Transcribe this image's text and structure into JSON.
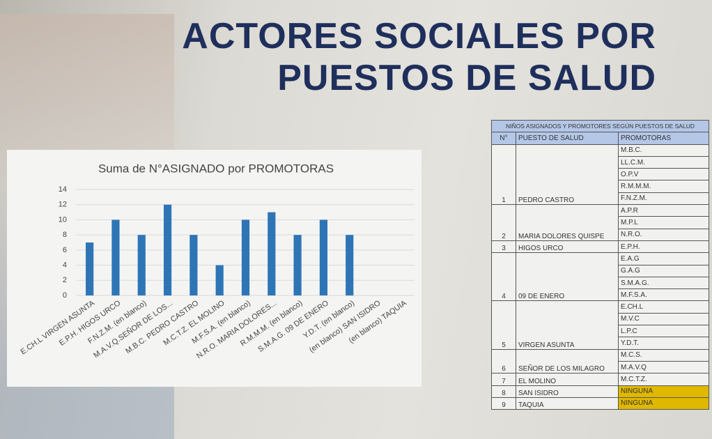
{
  "page_title": {
    "lines": [
      "ACTORES SOCIALES POR",
      "PUESTOS DE SALUD"
    ]
  },
  "chart_data": {
    "type": "bar",
    "title": "Suma de N°ASIGNADO por PROMOTORAS",
    "categories": [
      "E.CH.L VIRGEN ASUNTA",
      "E.P.H. HIGOS URCO",
      "F.N.Z.M. (en blanco)",
      "M.A.V.Q.SEÑOR DE LOS...",
      "M.B.C. PEDRO CASTRO",
      "M.C.T.Z. EL MOLINO",
      "M.F.S.A. (en blanco)",
      "N.R.O. MARIA DOLORES...",
      "R.M.M.M. (en blanco)",
      "S.M.A.G. 09 DE ENERO",
      "Y.D.T. (en blanco)",
      "(en blanco) SAN ISIDRO",
      "(en blanco) TAQUIA"
    ],
    "values": [
      7,
      10,
      8,
      12,
      8,
      4,
      10,
      11,
      8,
      10,
      8,
      null,
      null
    ],
    "color": "#2e75b6",
    "ylim": [
      0,
      14
    ],
    "yticks": [
      0,
      2,
      4,
      6,
      8,
      10,
      12,
      14
    ],
    "grid": true
  },
  "table": {
    "title": "NIÑOS ASIGNADOS Y PROMOTORES SEGÚN PUESTOS DE SALUD",
    "header": [
      "N°",
      "PUESTO DE SALUD",
      "PROMOTORAS"
    ],
    "groups": [
      {
        "n": 1,
        "puesto": "PEDRO CASTRO",
        "promotoras": [
          "M.B.C.",
          "LL.C.M.",
          "O.P.V",
          "R.M.M.M.",
          "F.N.Z.M."
        ]
      },
      {
        "n": 2,
        "puesto": "MARIA DOLORES QUISPE",
        "promotoras": [
          "A.P.R",
          "M.P.L",
          "N.R.O."
        ]
      },
      {
        "n": 3,
        "puesto": "HIGOS URCO",
        "promotoras": [
          "E.P.H."
        ]
      },
      {
        "n": 4,
        "puesto": "09 DE ENERO",
        "promotoras": [
          "E.A.G",
          "G.A.G",
          "S.M.A.G.",
          "M.F.S.A."
        ]
      },
      {
        "n": 5,
        "puesto": "VIRGEN ASUNTA",
        "promotoras": [
          "E.CH.L",
          "M.V.C",
          "L.P.C",
          "Y.D.T."
        ]
      },
      {
        "n": 6,
        "puesto": "SEÑOR DE LOS MILAGRO",
        "promotoras": [
          "M.C.S.",
          "M.A.V.Q"
        ]
      },
      {
        "n": 7,
        "puesto": "EL MOLINO",
        "promotoras": [
          "M.C.T.Z."
        ]
      },
      {
        "n": 8,
        "puesto": "SAN ISIDRO",
        "promotoras": [
          "NINGUNA"
        ],
        "highlight": "#e0b800"
      },
      {
        "n": 9,
        "puesto": "TAQUIA",
        "promotoras": [
          "NINGUNA"
        ],
        "highlight": "#e0b800"
      }
    ]
  }
}
